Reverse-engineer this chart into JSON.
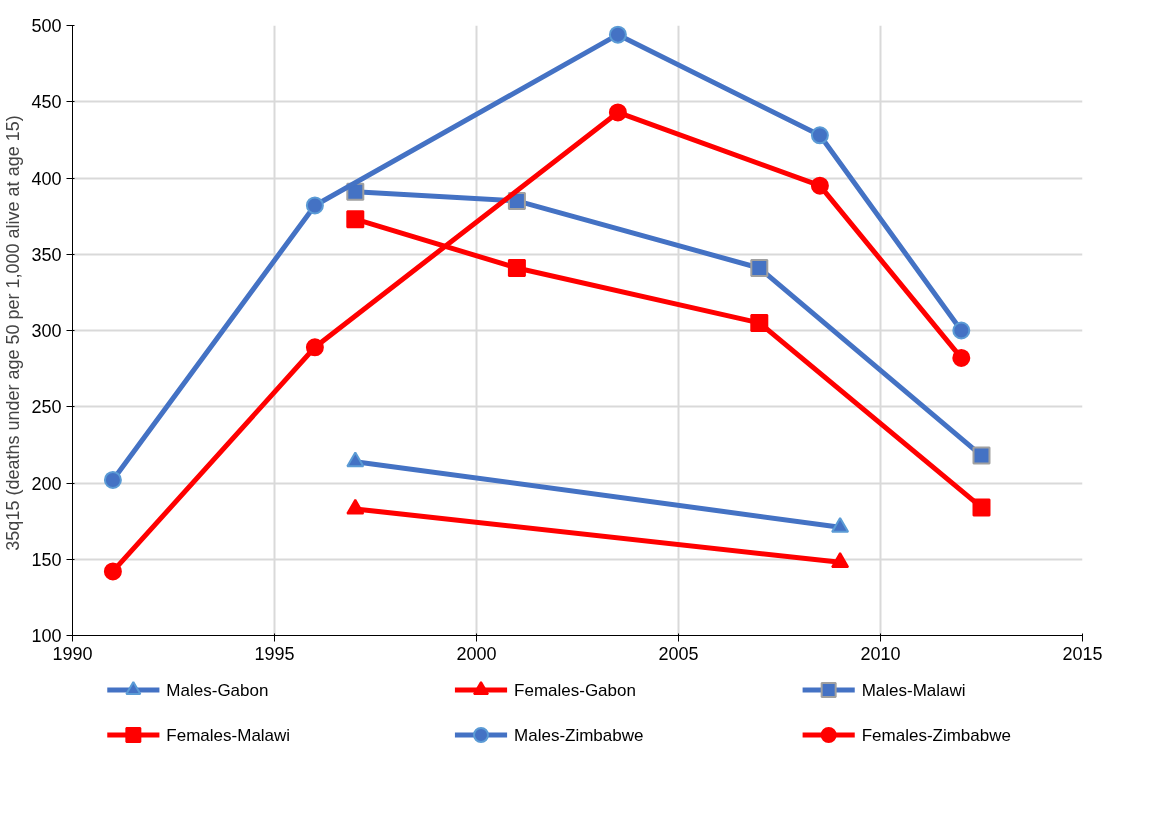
{
  "chart_data": {
    "type": "line",
    "ylabel": "35q15 (deaths under age 50 per 1,000 alive at age  15)",
    "xlim": [
      1990,
      2015
    ],
    "xticks": [
      1990,
      1995,
      2000,
      2005,
      2010,
      2015
    ],
    "ylim": [
      100,
      500
    ],
    "yticks": [
      100,
      150,
      200,
      250,
      300,
      350,
      400,
      450,
      500
    ],
    "grid": true,
    "legend": "bottom",
    "line_style": "solid",
    "series": [
      {
        "name": "Males-Gabon",
        "color": "#4472c4",
        "marker": "triangle",
        "x": [
          1997,
          2009
        ],
        "values": [
          214,
          171
        ]
      },
      {
        "name": "Females-Gabon",
        "color": "#ff0000",
        "marker": "triangle",
        "x": [
          1997,
          2009
        ],
        "values": [
          183,
          148
        ]
      },
      {
        "name": "Males-Malawi",
        "color": "#4472c4",
        "marker": "square",
        "x": [
          1997,
          2001,
          2007,
          2012.5
        ],
        "values": [
          391,
          385,
          341,
          218
        ]
      },
      {
        "name": "Females-Malawi",
        "color": "#ff0000",
        "marker": "square",
        "x": [
          1997,
          2001,
          2007,
          2012.5
        ],
        "values": [
          373,
          341,
          305,
          184
        ]
      },
      {
        "name": "Males-Zimbabwe",
        "color": "#4472c4",
        "marker": "circle",
        "x": [
          1991,
          1996,
          2003.5,
          2008.5,
          2012
        ],
        "values": [
          202,
          382,
          494,
          428,
          300
        ]
      },
      {
        "name": "Females-Zimbabwe",
        "color": "#ff0000",
        "marker": "circle",
        "x": [
          1991,
          1996,
          2003.5,
          2008.5,
          2012
        ],
        "values": [
          142,
          289,
          443,
          395,
          282
        ]
      }
    ]
  }
}
